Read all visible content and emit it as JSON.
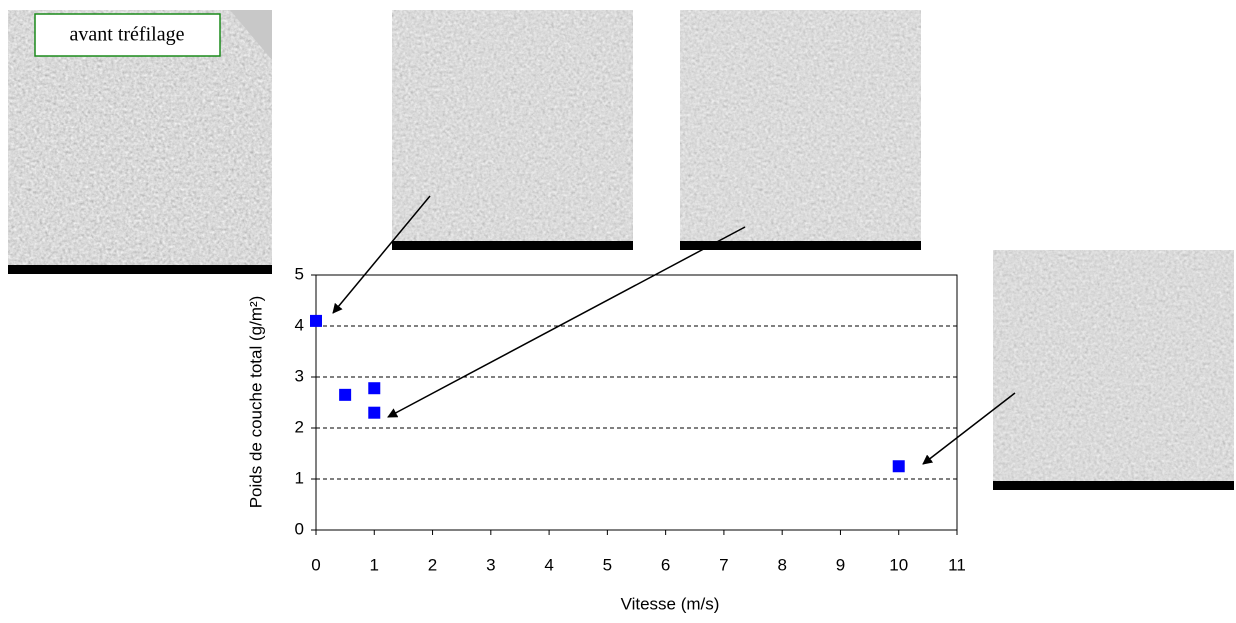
{
  "chart_data": {
    "type": "scatter",
    "annotation": "avant tréfilage",
    "xlabel": "Vitesse (m/s)",
    "ylabel": "Poids de couche total (g/m²)",
    "x": [
      0,
      0.5,
      1,
      1,
      10
    ],
    "values": [
      4.1,
      2.65,
      2.78,
      2.3,
      1.25
    ],
    "color": "#0000ff",
    "xlim": [
      0,
      11
    ],
    "xticks": [
      0,
      1,
      2,
      3,
      4,
      5,
      6,
      7,
      8,
      9,
      10,
      11
    ],
    "ylim": [
      0,
      5
    ],
    "yticks": [
      0,
      1,
      2,
      3,
      4,
      5
    ],
    "grid": true
  }
}
